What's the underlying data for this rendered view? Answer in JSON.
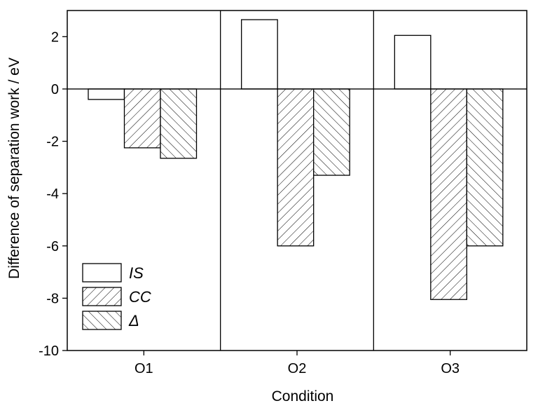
{
  "chart_data": {
    "type": "bar",
    "title": "",
    "xlabel": "Condition",
    "ylabel": "Difference of separation work / eV",
    "categories": [
      "O1",
      "O2",
      "O3"
    ],
    "series": [
      {
        "name": "IS",
        "values": [
          -0.4,
          2.65,
          2.05
        ],
        "pattern": "none"
      },
      {
        "name": "CC",
        "values": [
          -2.25,
          -6.0,
          -8.05
        ],
        "pattern": "diagonal-up"
      },
      {
        "name": "Δ",
        "values": [
          -2.65,
          -3.3,
          -6.0
        ],
        "pattern": "diagonal-down"
      }
    ],
    "ylim": [
      -10,
      3
    ],
    "yticks": [
      -10,
      -8,
      -6,
      -4,
      -2,
      0,
      2
    ],
    "ytick_labels": [
      "-10",
      "-8",
      "-6",
      "-4",
      "-2",
      "0",
      "2"
    ],
    "zero_line": true,
    "category_separators": true,
    "grid": false,
    "legend": {
      "position": "bottom-left"
    }
  }
}
